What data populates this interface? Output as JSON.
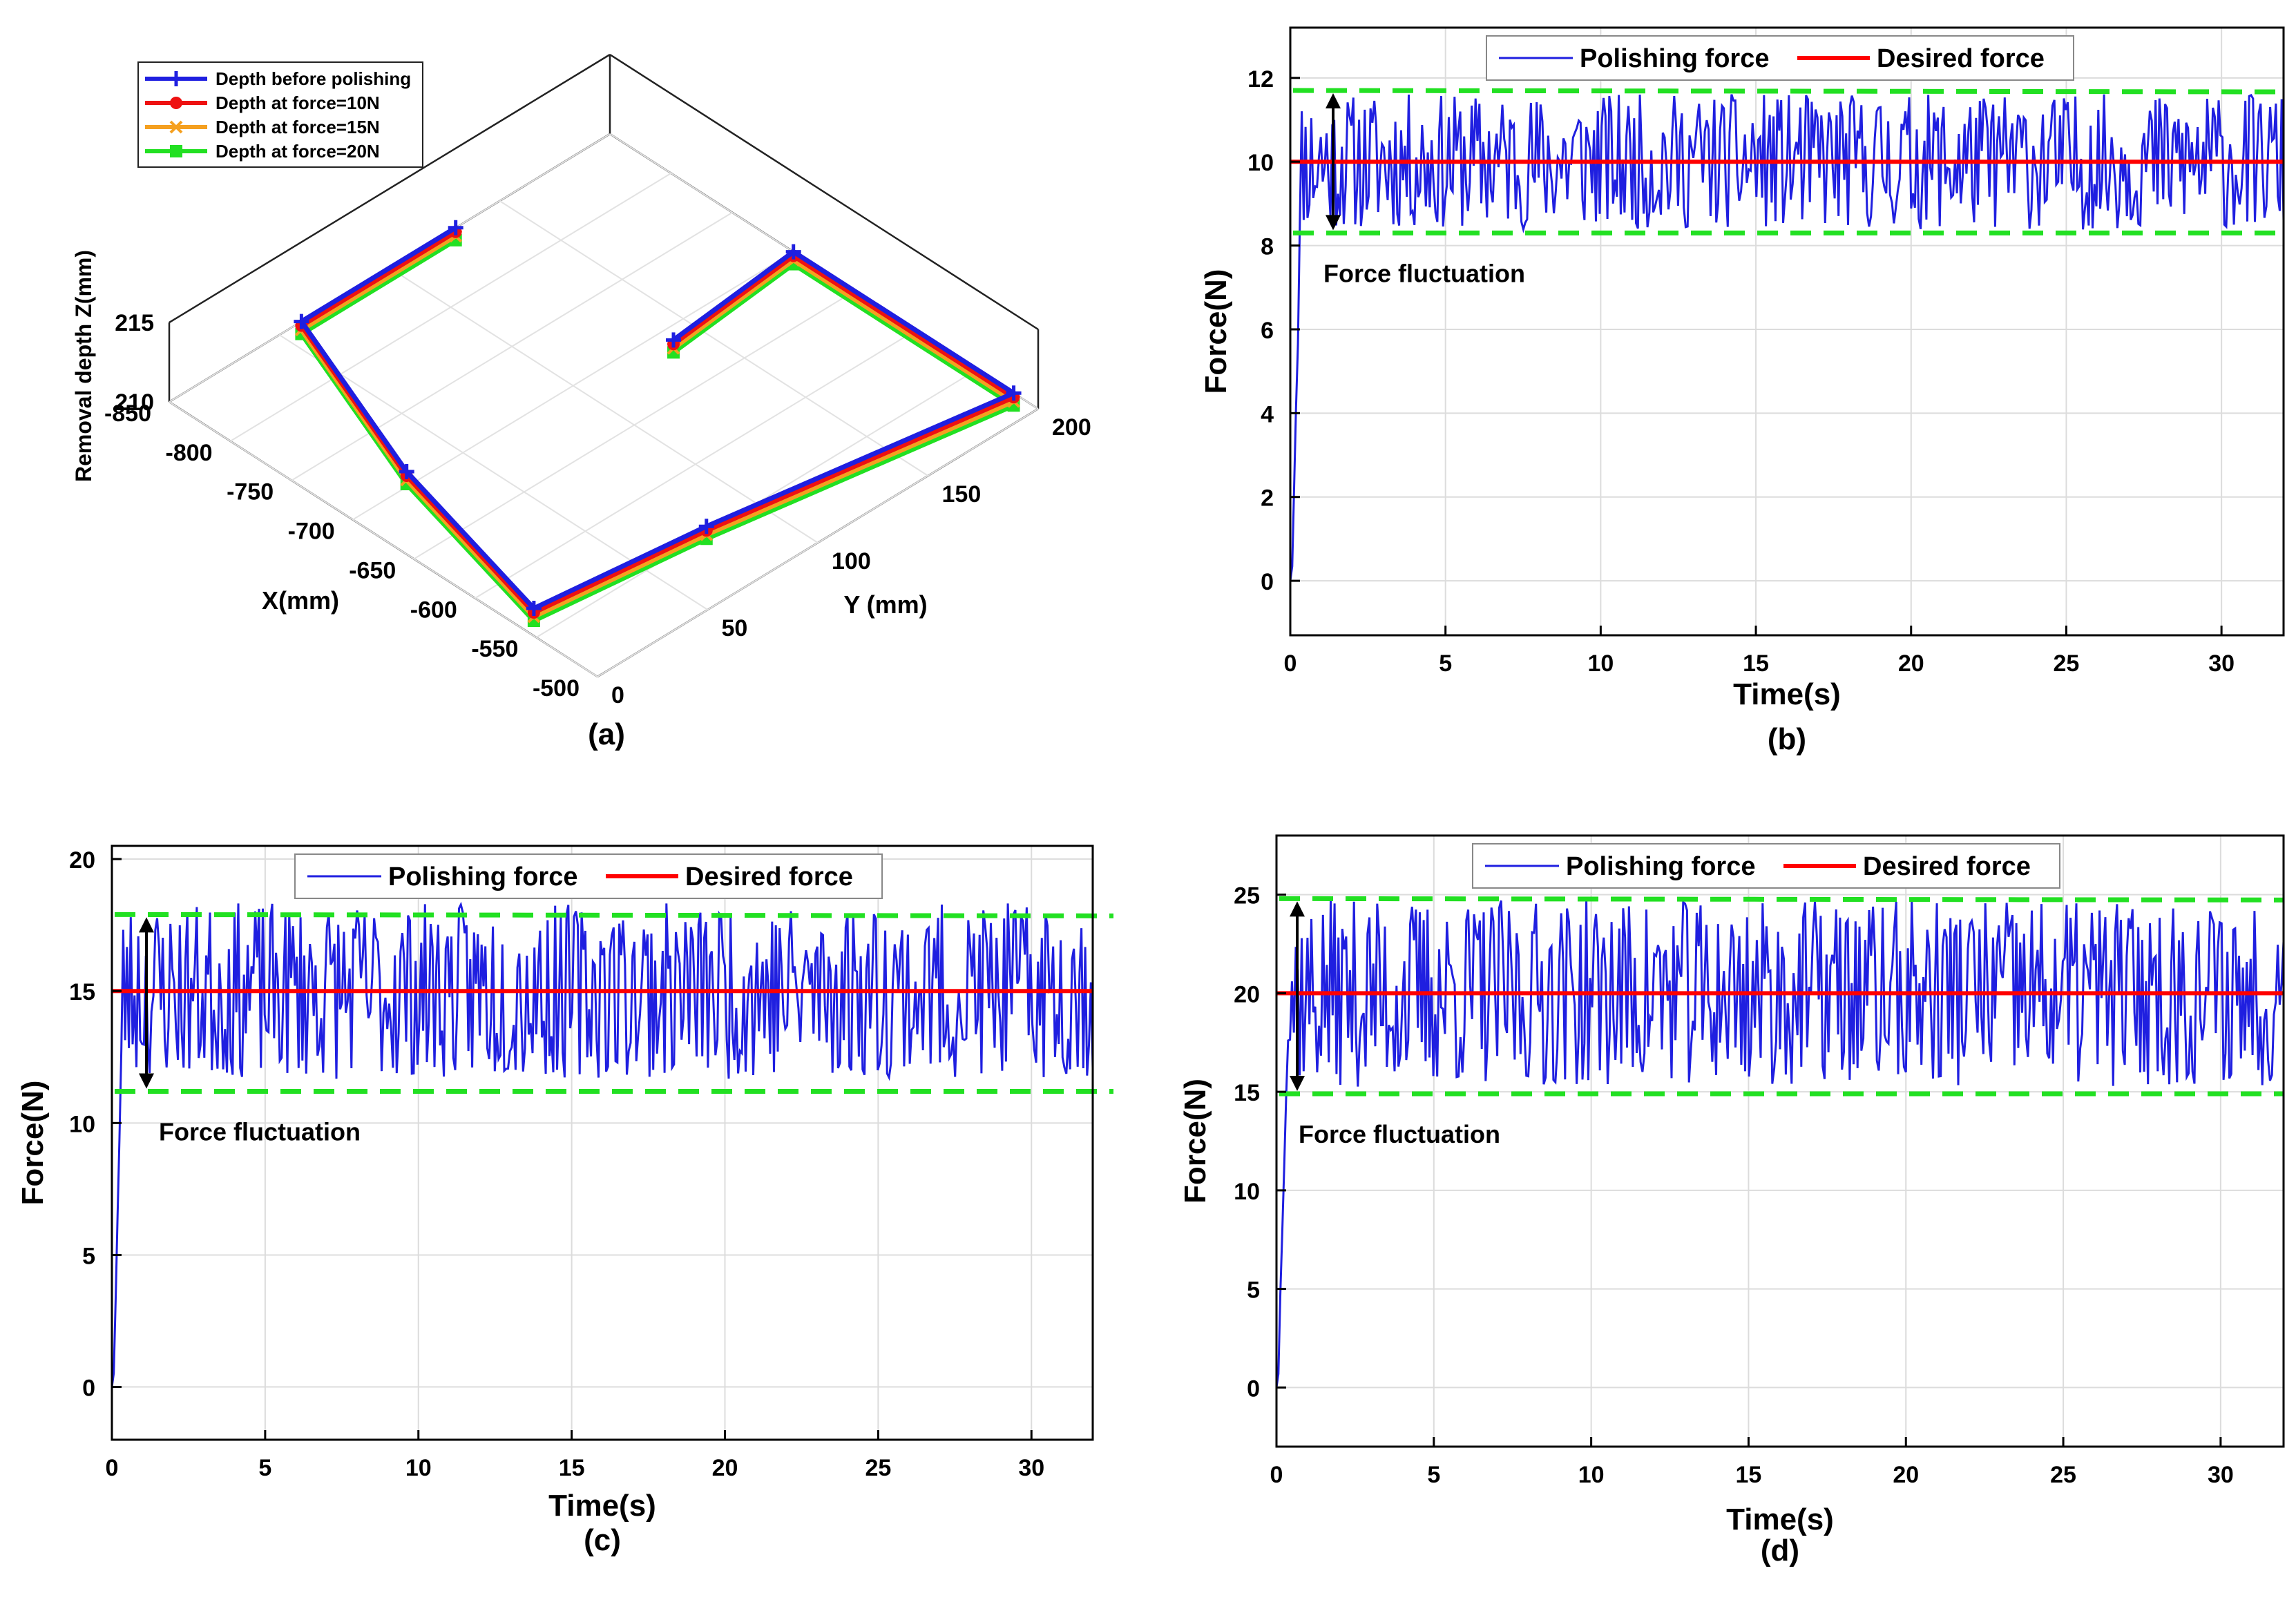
{
  "chart_data": [
    {
      "id": "a",
      "type": "line3d",
      "caption": "(a)",
      "xlabel": "X(mm)",
      "ylabel": "Y (mm)",
      "zlabel": "Removal depth Z(mm)",
      "xticks": [
        "-850",
        "-800",
        "-750",
        "-700",
        "-650",
        "-600",
        "-550",
        "-500"
      ],
      "yticks": [
        "0",
        "50",
        "100",
        "150",
        "200"
      ],
      "zticks": [
        "210",
        "215"
      ],
      "xlim": [
        -850,
        -500
      ],
      "ylim": [
        0,
        200
      ],
      "zlim": [
        210,
        215
      ],
      "path_x": [
        -850,
        -850,
        -710,
        -570,
        -555,
        -520,
        -700,
        -690
      ],
      "path_y": [
        130,
        60,
        30,
        10,
        80,
        200,
        200,
        140
      ],
      "series": [
        {
          "name": "Depth before polishing",
          "color": "#1f1fe0",
          "marker": "plus",
          "offset": 0
        },
        {
          "name": "Depth at force=10N",
          "color": "#ee1111",
          "marker": "circle",
          "offset": 1
        },
        {
          "name": "Depth at force=15N",
          "color": "#f5a020",
          "marker": "x",
          "offset": 2
        },
        {
          "name": "Depth at force=20N",
          "color": "#22e022",
          "marker": "square",
          "offset": 3
        }
      ]
    },
    {
      "id": "b",
      "type": "line",
      "caption": "(b)",
      "xlabel": "Time(s)",
      "ylabel": "Force(N)",
      "xlim": [
        0,
        32
      ],
      "ylim": [
        -1.3,
        13.2
      ],
      "xticks": [
        0,
        5,
        10,
        15,
        20,
        25,
        30
      ],
      "yticks": [
        0,
        2,
        4,
        6,
        8,
        10,
        12
      ],
      "desired": 10,
      "band": [
        8.3,
        11.7
      ],
      "amplitude": 1.7,
      "annotation": "Force fluctuation",
      "seed": 11,
      "legend": {
        "polishing": "Polishing force",
        "desired": "Desired force"
      },
      "colors": {
        "polishing": "#1f1fe0",
        "desired": "#ff0000",
        "band": "#22e022"
      }
    },
    {
      "id": "c",
      "type": "line",
      "caption": "(c)",
      "xlabel": "Time(s)",
      "ylabel": "Force(N)",
      "xlim": [
        0,
        32
      ],
      "ylim": [
        -2,
        20.5
      ],
      "xticks": [
        0,
        5,
        10,
        15,
        20,
        25,
        30
      ],
      "yticks": [
        0,
        5,
        10,
        15,
        20
      ],
      "desired": 15,
      "band": [
        11.2,
        17.9
      ],
      "amplitude": 3.5,
      "annotation": "Force fluctuation",
      "seed": 23,
      "legend": {
        "polishing": "Polishing force",
        "desired": "Desired force"
      },
      "colors": {
        "polishing": "#1f1fe0",
        "desired": "#ff0000",
        "band": "#22e022"
      }
    },
    {
      "id": "d",
      "type": "line",
      "caption": "(d)",
      "xlabel": "Time(s)",
      "ylabel": "Force(N)",
      "xlim": [
        0,
        32
      ],
      "ylim": [
        -3,
        28
      ],
      "xticks": [
        0,
        5,
        10,
        15,
        20,
        25,
        30
      ],
      "yticks": [
        0,
        5,
        10,
        15,
        20,
        25
      ],
      "desired": 20,
      "band": [
        14.9,
        24.8
      ],
      "amplitude": 5,
      "annotation": "Force fluctuation",
      "seed": 37,
      "legend": {
        "polishing": "Polishing force",
        "desired": "Desired force"
      },
      "colors": {
        "polishing": "#1f1fe0",
        "desired": "#ff0000",
        "band": "#22e022"
      }
    }
  ]
}
